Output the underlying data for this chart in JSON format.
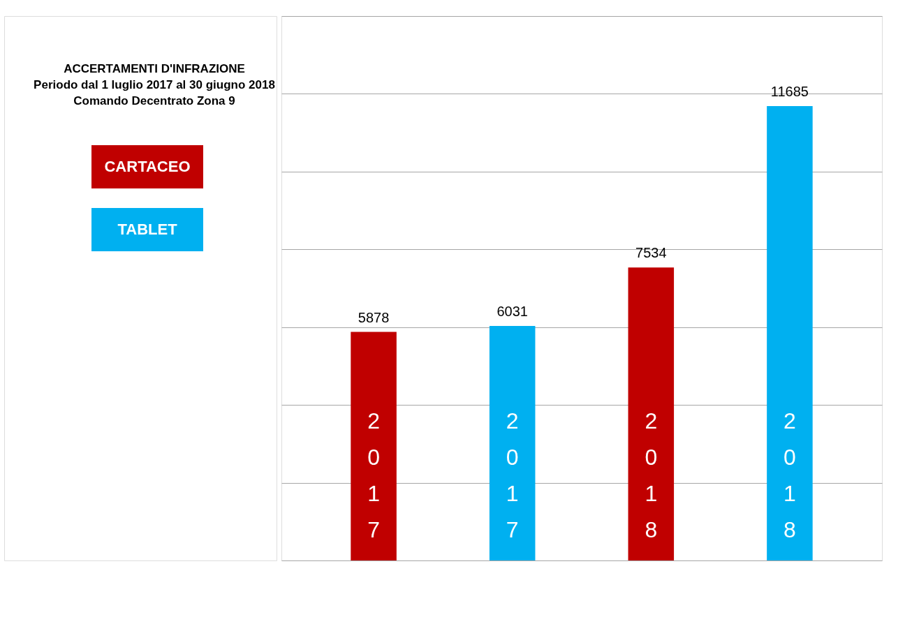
{
  "chart_data": {
    "type": "bar",
    "title": "ACCERTAMENTI D'INFRAZIONE\nPeriodo dal 1 luglio 2017 al 30 giugno 2018\nComando Decentrato Zona 9",
    "categories": [
      "2017",
      "2017",
      "2018",
      "2018"
    ],
    "series": [
      {
        "name": "CARTACEO",
        "color": "#c00000",
        "values": [
          5878,
          null,
          7534,
          null
        ]
      },
      {
        "name": "TABLET",
        "color": "#00b0f0",
        "values": [
          null,
          6031,
          null,
          11685
        ]
      }
    ],
    "ylim": [
      0,
      14000
    ],
    "yticks": [
      {
        "value": 0,
        "label": null
      },
      {
        "value": 2000,
        "label": null
      },
      {
        "value": 4000,
        "label": null
      },
      {
        "value": 6000,
        "label": null
      },
      {
        "value": 8000,
        "label": null
      },
      {
        "value": 10000,
        "label": null
      },
      {
        "value": 12000,
        "label": null
      },
      {
        "value": 14000,
        "label": null
      }
    ],
    "tick_labels": false,
    "grid": "y",
    "data_labels": true,
    "legend": "left"
  }
}
